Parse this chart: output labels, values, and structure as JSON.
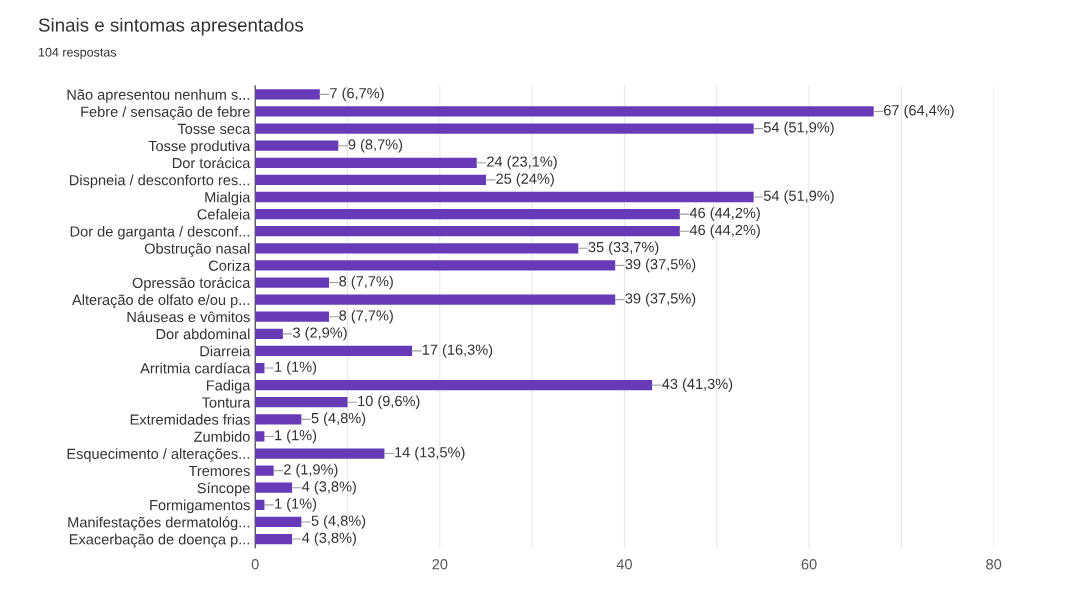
{
  "chart_data": {
    "type": "bar",
    "orientation": "horizontal",
    "title": "Sinais e sintomas apresentados",
    "subtitle": "104 respostas",
    "categories": [
      "Não apresentou nenhum s...",
      "Febre / sensação de febre",
      "Tosse seca",
      "Tosse produtiva",
      "Dor torácica",
      "Dispneia / desconforto res...",
      "Mialgia",
      "Cefaleia",
      "Dor de garganta / desconf...",
      "Obstrução nasal",
      "Coriza",
      "Opressão torácica",
      "Alteração de olfato e/ou p...",
      "Náuseas e vômitos",
      "Dor abdominal",
      "Diarreia",
      "Arritmia cardíaca",
      "Fadiga",
      "Tontura",
      "Extremidades frias",
      "Zumbido",
      "Esquecimento / alterações...",
      "Tremores",
      "Síncope",
      "Formigamentos",
      "Manifestações dermatológ...",
      "Exacerbação de doença p..."
    ],
    "values": [
      7,
      67,
      54,
      9,
      24,
      25,
      54,
      46,
      46,
      35,
      39,
      8,
      39,
      8,
      3,
      17,
      1,
      43,
      10,
      5,
      1,
      14,
      2,
      4,
      1,
      5,
      4
    ],
    "value_labels": [
      "7 (6,7%)",
      "67 (64,4%)",
      "54 (51,9%)",
      "9 (8,7%)",
      "24 (23,1%)",
      "25 (24%)",
      "54 (51,9%)",
      "46 (44,2%)",
      "46 (44,2%)",
      "35 (33,7%)",
      "39 (37,5%)",
      "8 (7,7%)",
      "39 (37,5%)",
      "8 (7,7%)",
      "3 (2,9%)",
      "17 (16,3%)",
      "1 (1%)",
      "43 (41,3%)",
      "10 (9,6%)",
      "5 (4,8%)",
      "1 (1%)",
      "14 (13,5%)",
      "2 (1,9%)",
      "4 (3,8%)",
      "1 (1%)",
      "5 (4,8%)",
      "4 (3,8%)"
    ],
    "color": "#673ab7",
    "xlim": [
      0,
      80
    ],
    "xticks": [
      0,
      {
        "value": 10,
        "label": null
      },
      20,
      {
        "value": 30,
        "label": null
      },
      40,
      {
        "value": 50,
        "label": null
      },
      60,
      {
        "value": 70,
        "label": null
      },
      80
    ],
    "grid": "x"
  }
}
